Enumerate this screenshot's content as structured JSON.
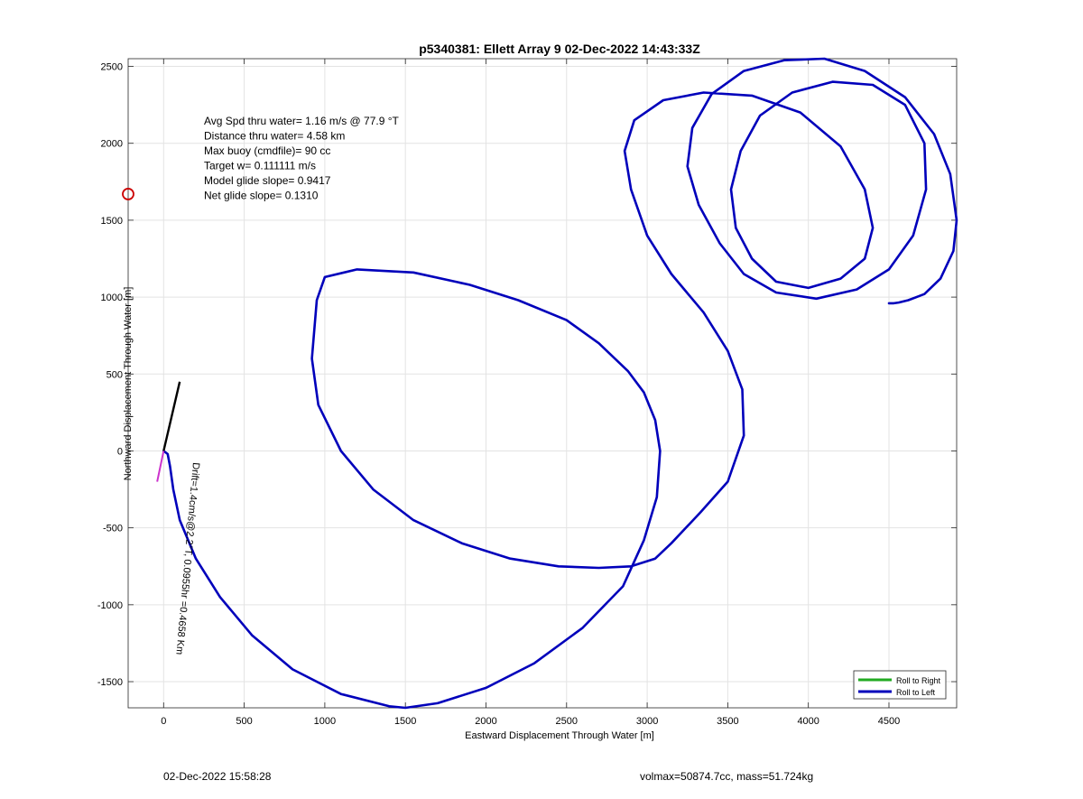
{
  "chart_data": {
    "type": "line",
    "title": "p5340381: Ellett Array 9 02-Dec-2022 14:43:33Z",
    "xlabel": "Eastward Displacement Through Water [m]",
    "ylabel": "Northward Displacement Through Water [m]",
    "xlim": [
      -220,
      4920
    ],
    "ylim": [
      -1670,
      2550
    ],
    "xticks": [
      0,
      500,
      1000,
      1500,
      2000,
      2500,
      3000,
      3500,
      4000,
      4500
    ],
    "yticks": [
      -1500,
      -1000,
      -500,
      0,
      500,
      1000,
      1500,
      2000,
      2500
    ],
    "grid": true,
    "legend_position": "bottom-right",
    "annotations": [
      "Avg Spd thru water=  1.16 m/s @  77.9 °T",
      "Distance thru water=  4.58 km",
      "Max buoy (cmdfile)= 90 cc",
      "Target w= 0.111111 m/s",
      "Model glide slope= 0.9417",
      "Net glide slope= 0.1310"
    ],
    "drift_label": "Drift=1.4cm/s@2.2°T, 0.0955hr =0.4658 Km",
    "marker_point": {
      "x": -220,
      "y": 1670
    },
    "series": [
      {
        "name": "Roll to Right",
        "color": "#22aa22",
        "x": [],
        "y": []
      },
      {
        "name": "Roll to Left",
        "color": "#0000bb",
        "x": [
          0,
          25,
          40,
          60,
          100,
          200,
          350,
          550,
          800,
          1100,
          1400,
          1500,
          1700,
          2000,
          2300,
          2600,
          2850,
          2980,
          3060,
          3080,
          3050,
          2980,
          2880,
          2700,
          2500,
          2200,
          1900,
          1550,
          1200,
          1000,
          950,
          920,
          960,
          1100,
          1300,
          1550,
          1850,
          2150,
          2450,
          2700,
          2900,
          3050,
          3150,
          3330,
          3500,
          3600,
          3590,
          3500,
          3350,
          3150,
          3000,
          2900,
          2860,
          2920,
          3100,
          3350,
          3650,
          3950,
          4200,
          4350,
          4400,
          4350,
          4200,
          4000,
          3800,
          3650,
          3550,
          3520,
          3580,
          3700,
          3900,
          4150,
          4400,
          4600,
          4720,
          4730,
          4650,
          4500,
          4300,
          4050,
          3800,
          3600,
          3450,
          3320,
          3250,
          3280,
          3400,
          3600,
          3850,
          4100,
          4350,
          4600,
          4780,
          4880,
          4920,
          4900,
          4820,
          4720,
          4620,
          4560,
          4530,
          4500
        ],
        "y": [
          0,
          -20,
          -100,
          -250,
          -450,
          -700,
          -950,
          -1200,
          -1420,
          -1580,
          -1660,
          -1670,
          -1640,
          -1540,
          -1380,
          -1150,
          -880,
          -580,
          -300,
          0,
          200,
          380,
          520,
          700,
          850,
          980,
          1080,
          1160,
          1180,
          1130,
          980,
          600,
          300,
          0,
          -250,
          -450,
          -600,
          -700,
          -750,
          -760,
          -750,
          -700,
          -600,
          -400,
          -200,
          100,
          400,
          650,
          900,
          1150,
          1400,
          1700,
          1950,
          2150,
          2280,
          2330,
          2310,
          2200,
          1980,
          1700,
          1450,
          1250,
          1120,
          1060,
          1100,
          1250,
          1450,
          1700,
          1950,
          2180,
          2330,
          2400,
          2380,
          2250,
          2000,
          1700,
          1400,
          1180,
          1050,
          990,
          1030,
          1150,
          1350,
          1600,
          1850,
          2100,
          2320,
          2470,
          2540,
          2550,
          2470,
          2300,
          2060,
          1800,
          1500,
          1300,
          1120,
          1020,
          980,
          965,
          960,
          960
        ]
      }
    ]
  },
  "footer": {
    "timestamp": "02-Dec-2022 15:58:28",
    "summary": "volmax=50874.7cc, mass=51.724kg"
  }
}
